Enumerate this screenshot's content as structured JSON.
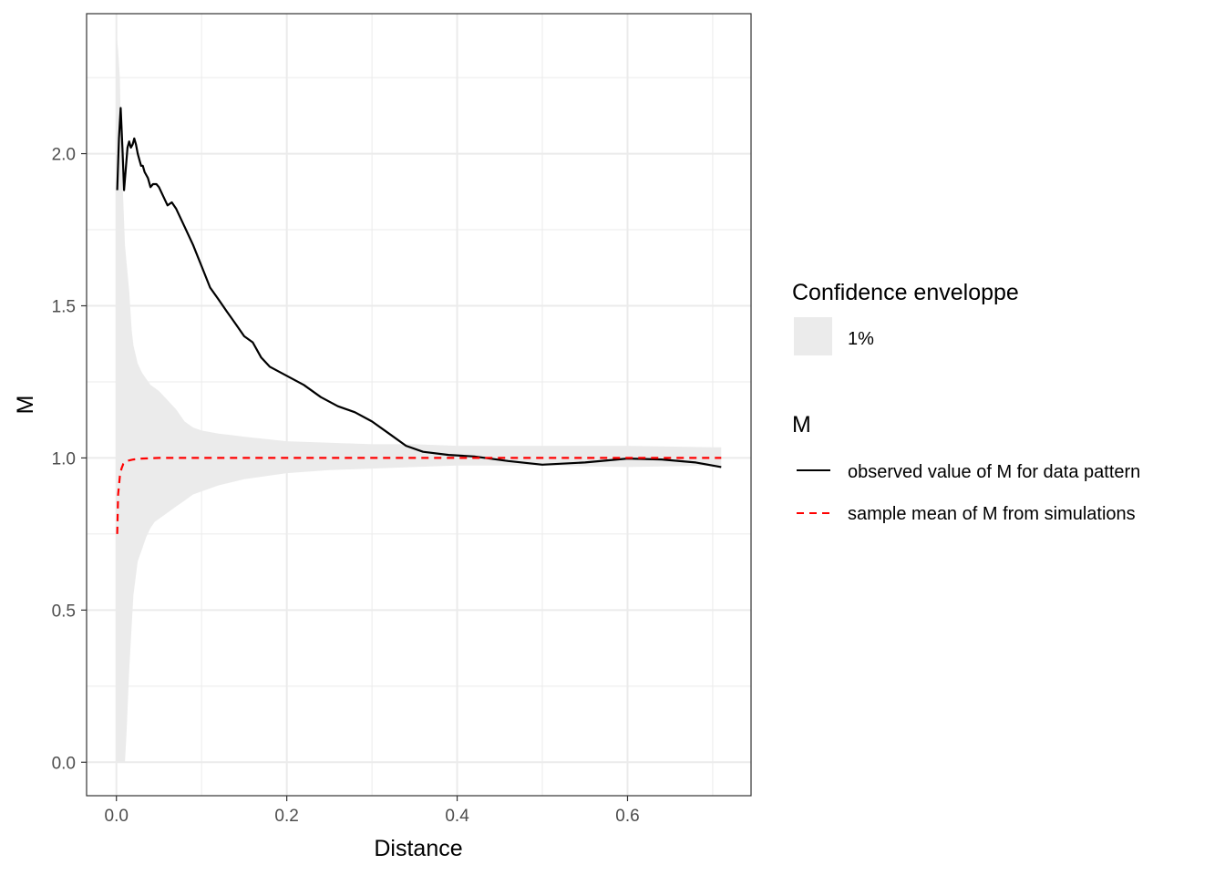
{
  "chart_data": {
    "type": "line",
    "xlabel": "Distance",
    "ylabel": "M",
    "xlim": [
      -0.035,
      0.745
    ],
    "ylim": [
      -0.11,
      2.46
    ],
    "x_ticks": [
      0.0,
      0.2,
      0.4,
      0.6
    ],
    "x_tick_labels": [
      "0.0",
      "0.2",
      "0.4",
      "0.6"
    ],
    "y_ticks": [
      0.0,
      0.5,
      1.0,
      1.5,
      2.0
    ],
    "y_tick_labels": [
      "0.0",
      "0.5",
      "1.0",
      "1.5",
      "2.0"
    ],
    "grid": true,
    "legend_position": "right",
    "envelope": {
      "legend_title": "Confidence enveloppe",
      "label": "1%",
      "color": "#ebebeb",
      "x": [
        0.0,
        0.002,
        0.004,
        0.006,
        0.008,
        0.01,
        0.012,
        0.015,
        0.018,
        0.02,
        0.025,
        0.03,
        0.035,
        0.04,
        0.045,
        0.05,
        0.06,
        0.07,
        0.08,
        0.09,
        0.1,
        0.12,
        0.15,
        0.2,
        0.25,
        0.3,
        0.35,
        0.4,
        0.5,
        0.6,
        0.7,
        0.71
      ],
      "lower": [
        0.0,
        0.0,
        0.0,
        0.0,
        0.0,
        0.0,
        0.1,
        0.3,
        0.45,
        0.55,
        0.66,
        0.7,
        0.74,
        0.77,
        0.79,
        0.8,
        0.82,
        0.84,
        0.86,
        0.88,
        0.89,
        0.91,
        0.93,
        0.95,
        0.96,
        0.965,
        0.97,
        0.975,
        0.975,
        0.97,
        0.975,
        0.975
      ],
      "upper": [
        2.4,
        2.34,
        2.25,
        2.0,
        1.85,
        1.7,
        1.64,
        1.55,
        1.42,
        1.37,
        1.31,
        1.28,
        1.26,
        1.24,
        1.23,
        1.22,
        1.19,
        1.16,
        1.12,
        1.1,
        1.09,
        1.08,
        1.07,
        1.055,
        1.05,
        1.045,
        1.045,
        1.04,
        1.04,
        1.04,
        1.035,
        1.035
      ]
    },
    "series_legend_title": "M",
    "series": [
      {
        "name": "observed value of M for data pattern",
        "color": "#000000",
        "dash": "solid",
        "x": [
          0.001,
          0.003,
          0.005,
          0.007,
          0.009,
          0.011,
          0.013,
          0.015,
          0.017,
          0.019,
          0.021,
          0.023,
          0.025,
          0.027,
          0.029,
          0.031,
          0.033,
          0.035,
          0.037,
          0.04,
          0.043,
          0.047,
          0.05,
          0.055,
          0.06,
          0.065,
          0.07,
          0.08,
          0.09,
          0.1,
          0.11,
          0.12,
          0.13,
          0.14,
          0.15,
          0.16,
          0.17,
          0.18,
          0.2,
          0.22,
          0.24,
          0.26,
          0.28,
          0.3,
          0.32,
          0.34,
          0.36,
          0.39,
          0.42,
          0.46,
          0.5,
          0.55,
          0.6,
          0.64,
          0.68,
          0.71
        ],
        "y": [
          1.88,
          2.05,
          2.15,
          2.02,
          1.88,
          1.95,
          2.02,
          2.04,
          2.02,
          2.03,
          2.05,
          2.03,
          2.0,
          1.98,
          1.96,
          1.96,
          1.94,
          1.93,
          1.92,
          1.89,
          1.9,
          1.9,
          1.89,
          1.86,
          1.83,
          1.84,
          1.82,
          1.76,
          1.7,
          1.63,
          1.56,
          1.52,
          1.48,
          1.44,
          1.4,
          1.38,
          1.33,
          1.3,
          1.27,
          1.24,
          1.2,
          1.17,
          1.15,
          1.12,
          1.08,
          1.04,
          1.02,
          1.01,
          1.005,
          0.99,
          0.978,
          0.985,
          0.998,
          0.995,
          0.985,
          0.97
        ]
      },
      {
        "name": "sample mean of M from simulations",
        "color": "#ff0000",
        "dash": "dashed",
        "x": [
          0.001,
          0.002,
          0.004,
          0.006,
          0.008,
          0.012,
          0.02,
          0.03,
          0.05,
          0.1,
          0.2,
          0.4,
          0.6,
          0.71
        ],
        "y": [
          0.75,
          0.88,
          0.94,
          0.965,
          0.98,
          0.99,
          0.995,
          0.998,
          1.0,
          1.0,
          1.0,
          1.0,
          1.0,
          1.0
        ]
      }
    ]
  }
}
